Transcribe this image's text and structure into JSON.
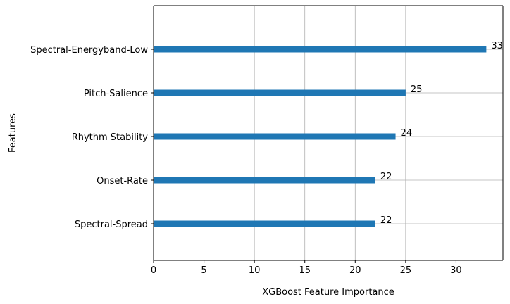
{
  "chart_data": {
    "type": "bar",
    "orientation": "horizontal",
    "title": "",
    "xlabel": "XGBoost Feature Importance",
    "ylabel": "Features",
    "categories": [
      "Spectral-Spread",
      "Onset-Rate",
      "Rhythm Stability",
      "Pitch-Salience",
      "Spectral-Energyband-Low"
    ],
    "values": [
      22,
      22,
      24,
      25,
      33
    ],
    "data_labels": [
      "22",
      "22",
      "24",
      "25",
      "33"
    ],
    "xlim": [
      0,
      34.65
    ],
    "xticks": [
      0,
      5,
      10,
      15,
      20,
      25,
      30
    ],
    "xtick_labels": [
      "0",
      "5",
      "10",
      "15",
      "20",
      "25",
      "30"
    ],
    "grid": true,
    "bar_color": "#1f77b4"
  }
}
